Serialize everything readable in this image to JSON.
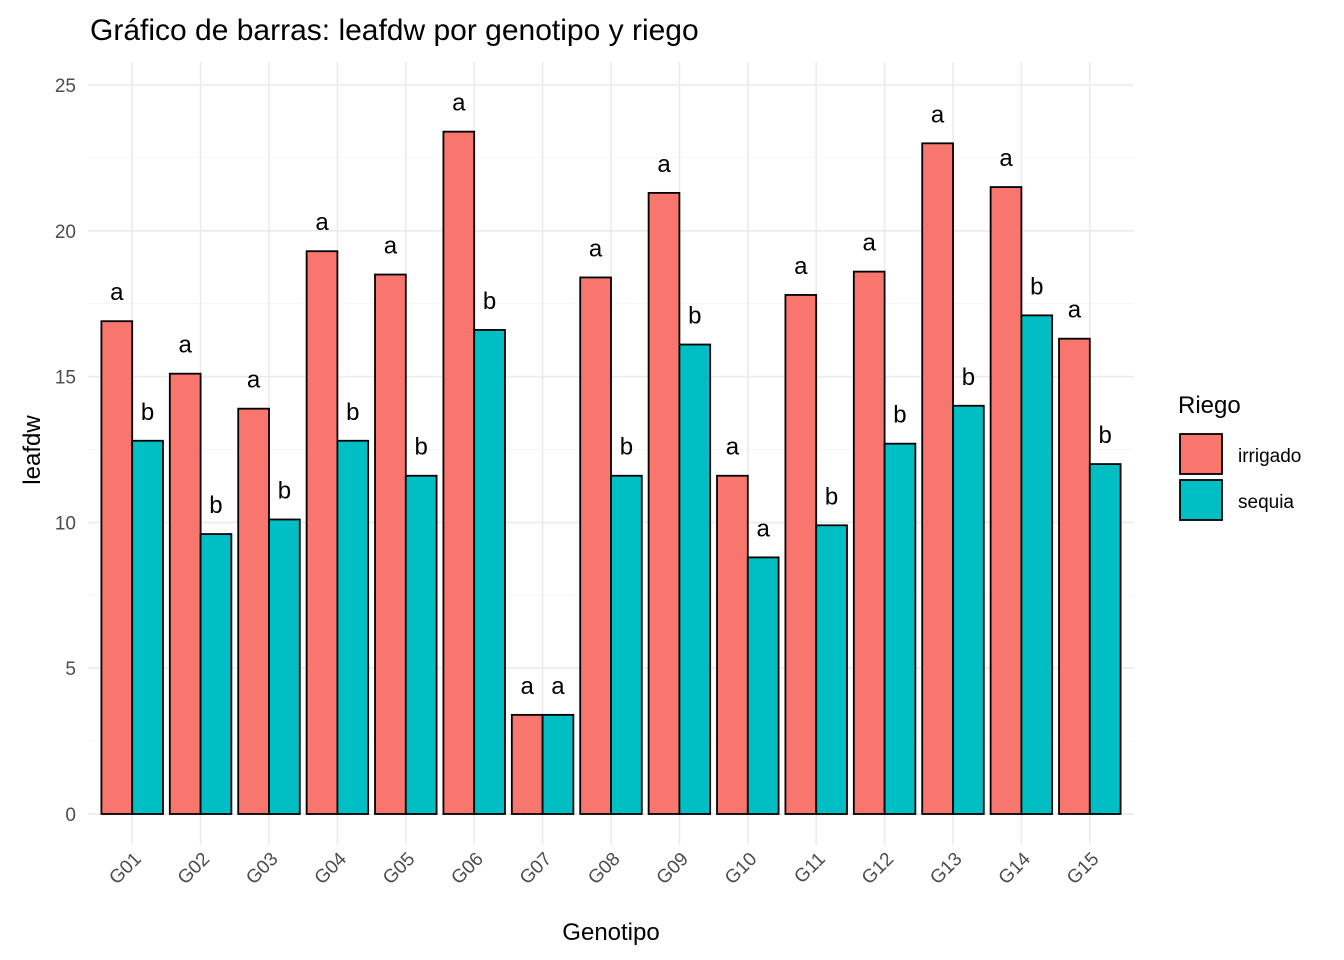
{
  "chart_data": {
    "type": "bar",
    "title": "Gráfico de barras: leafdw por genotipo y riego",
    "xlabel": "Genotipo",
    "ylabel": "leafdw",
    "ylim": [
      0,
      25
    ],
    "y_ticks": [
      0,
      5,
      10,
      15,
      20,
      25
    ],
    "grid": true,
    "legend": {
      "title": "Riego",
      "placement": "right"
    },
    "categories": [
      "G01",
      "G02",
      "G03",
      "G04",
      "G05",
      "G06",
      "G07",
      "G08",
      "G09",
      "G10",
      "G11",
      "G12",
      "G13",
      "G14",
      "G15"
    ],
    "series": [
      {
        "name": "irrigado",
        "color": "#F8766D",
        "values": [
          16.9,
          15.1,
          13.9,
          19.3,
          18.5,
          23.4,
          3.4,
          18.4,
          21.3,
          11.6,
          17.8,
          18.6,
          23.0,
          21.5,
          16.3
        ],
        "labels": [
          "a",
          "a",
          "a",
          "a",
          "a",
          "a",
          "a",
          "a",
          "a",
          "a",
          "a",
          "a",
          "a",
          "a",
          "a"
        ]
      },
      {
        "name": "sequia",
        "color": "#00BFC4",
        "values": [
          12.8,
          9.6,
          10.1,
          12.8,
          11.6,
          16.6,
          3.4,
          11.6,
          16.1,
          8.8,
          9.9,
          12.7,
          14.0,
          17.1,
          12.0
        ],
        "labels": [
          "b",
          "b",
          "b",
          "b",
          "b",
          "b",
          "a",
          "b",
          "b",
          "a",
          "b",
          "b",
          "b",
          "b",
          "b"
        ]
      }
    ]
  }
}
